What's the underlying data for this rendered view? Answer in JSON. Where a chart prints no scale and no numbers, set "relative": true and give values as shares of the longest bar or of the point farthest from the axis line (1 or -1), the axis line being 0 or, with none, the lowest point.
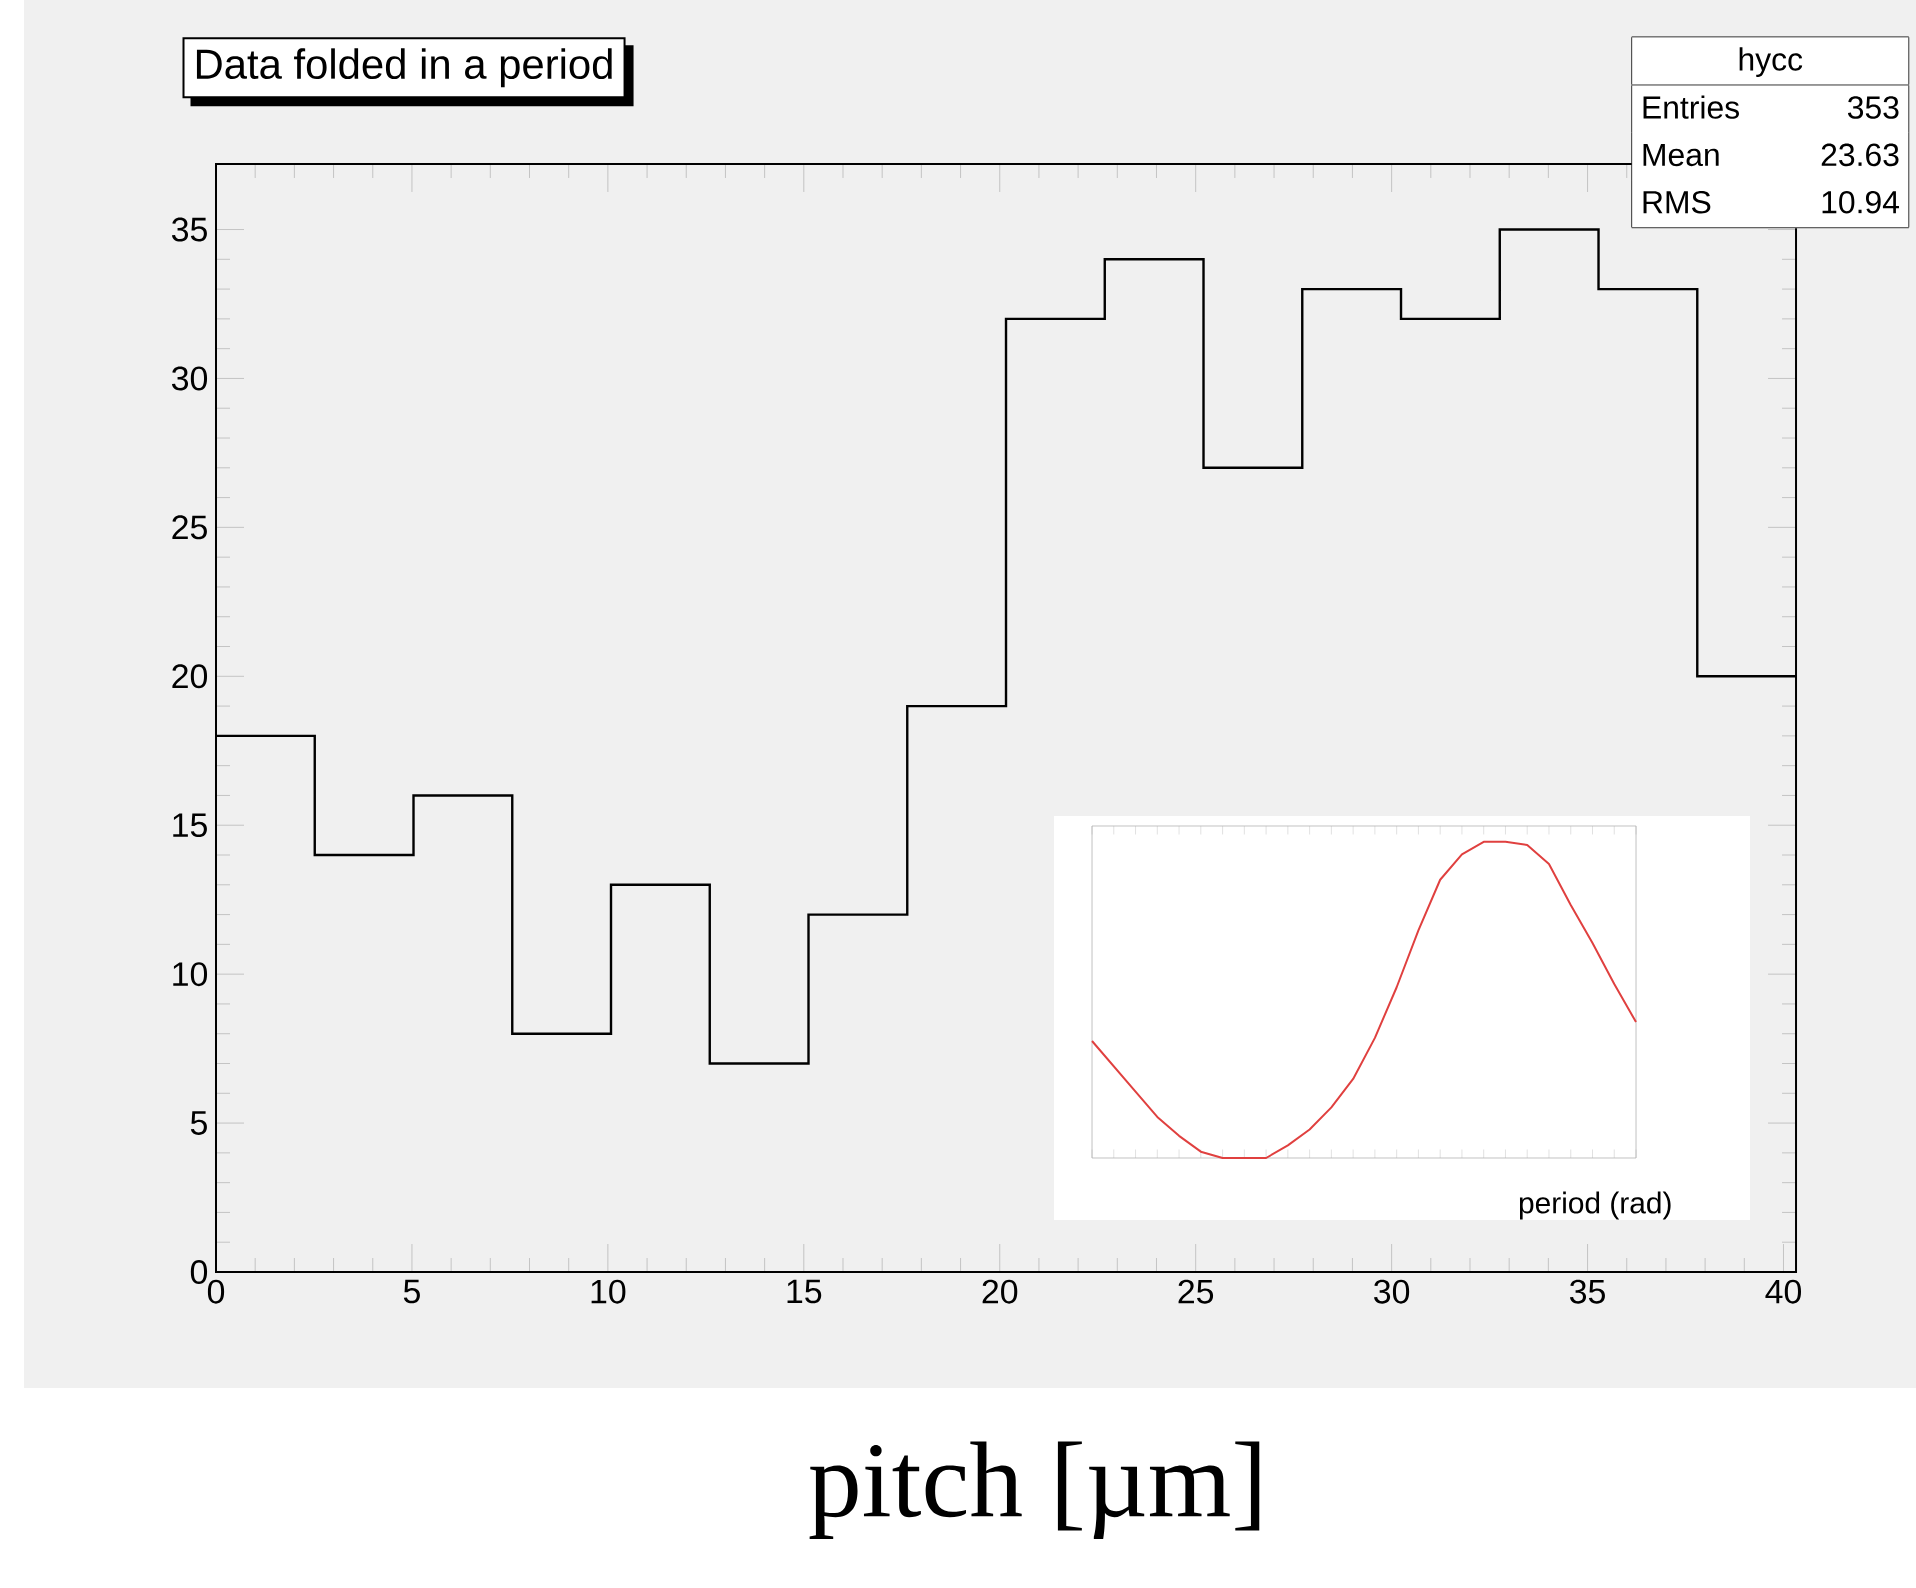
{
  "chart_data": [
    {
      "type": "histogram",
      "title": "Data folded in a period",
      "xlabel": "pitch [µm]",
      "bins": [
        0,
        2.52,
        5.04,
        7.56,
        10.08,
        12.6,
        15.12,
        17.64,
        20.16,
        22.68,
        25.2,
        27.72,
        30.24,
        32.76,
        35.28,
        37.8,
        40.32
      ],
      "values": [
        18,
        14,
        16,
        8,
        13,
        7,
        12,
        19,
        32,
        34,
        27,
        33,
        32,
        35,
        33,
        20
      ],
      "color": "#000000",
      "xlim": [
        0,
        40.32
      ],
      "ylim": [
        0,
        37.2
      ],
      "xticks": [
        0,
        5,
        10,
        15,
        20,
        25,
        30,
        35,
        40
      ],
      "yticks": [
        0,
        5,
        10,
        15,
        20,
        25,
        30,
        35
      ],
      "annotations": [
        "hycc",
        "Entries",
        "353",
        "Mean",
        "23.63",
        "RMS",
        "10.94"
      ]
    },
    {
      "type": "line",
      "xlabel": "period (rad)",
      "relative": true,
      "color": "#e0403f",
      "categories": [
        null,
        null,
        null,
        null,
        null,
        null,
        null,
        null,
        null,
        null,
        null,
        null,
        null,
        null,
        null,
        null,
        null,
        null,
        null,
        null,
        null,
        null,
        null,
        null,
        null,
        null
      ],
      "values": [
        0.37,
        0.29,
        0.21,
        0.13,
        0.07,
        0.02,
        0,
        0,
        0,
        0.04,
        0.09,
        0.16,
        0.25,
        0.38,
        0.54,
        0.72,
        0.88,
        0.96,
        1.0,
        1.0,
        0.99,
        0.93,
        0.8,
        0.68,
        0.55,
        0.43
      ]
    }
  ]
}
